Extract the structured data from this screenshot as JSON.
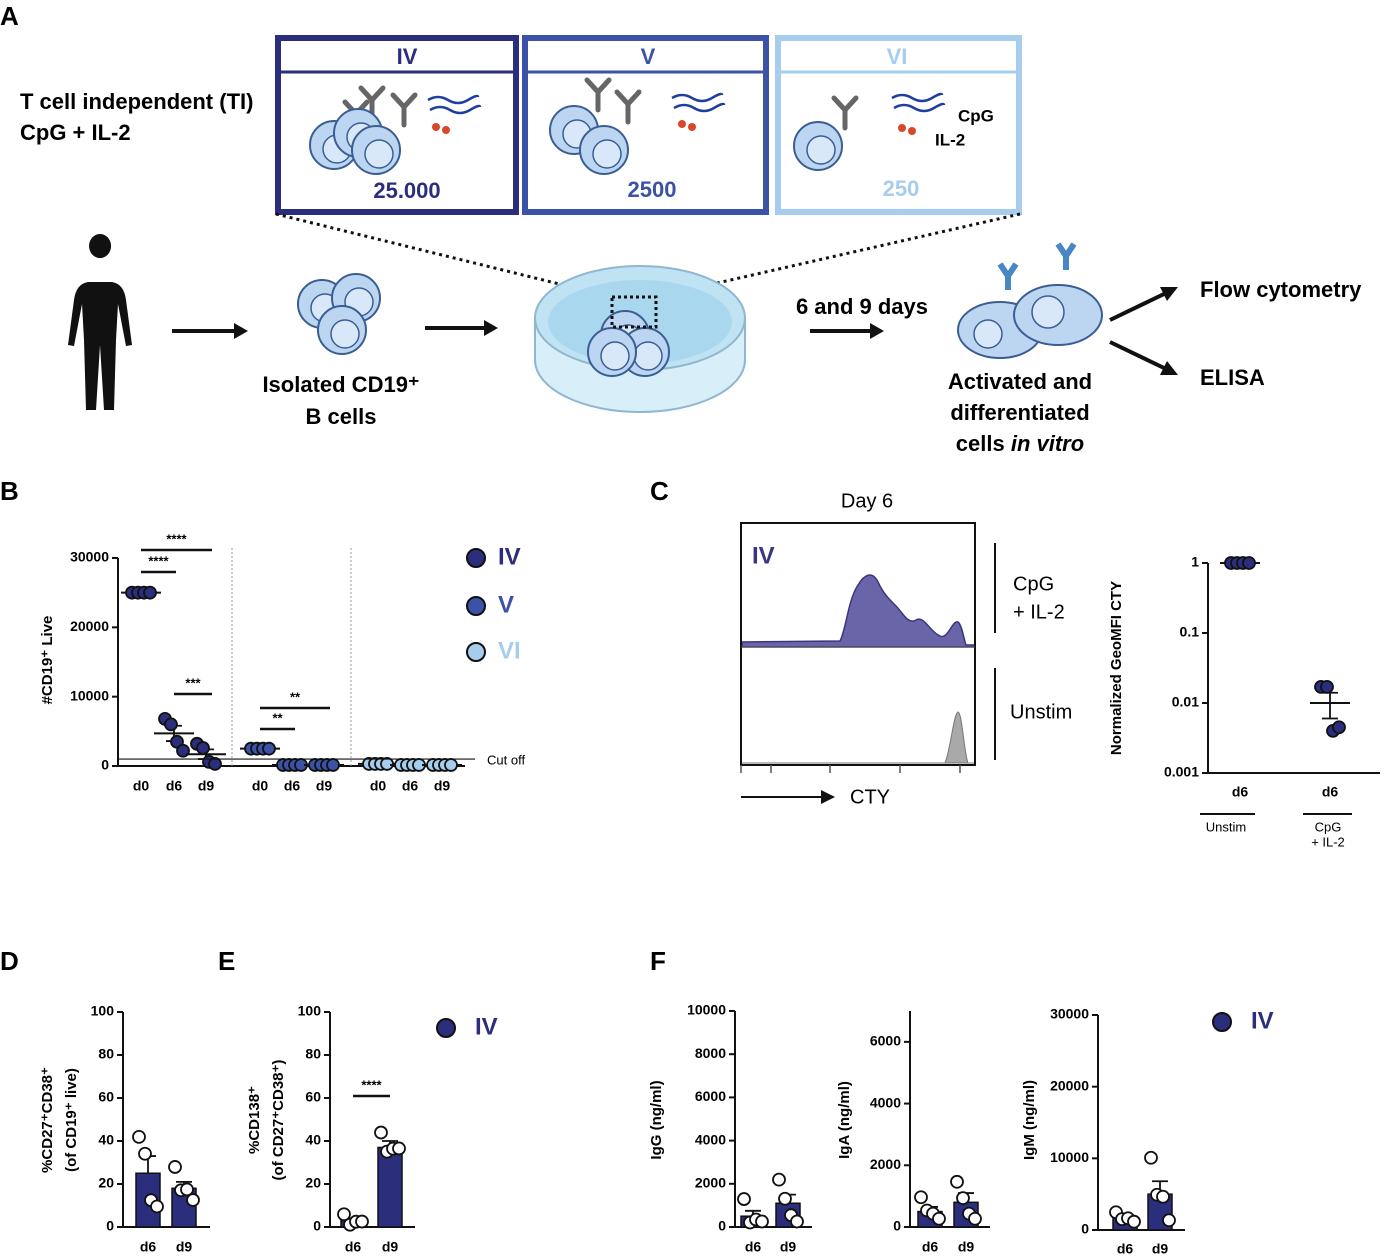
{
  "panel_labels": [
    "A",
    "B",
    "C",
    "D",
    "E",
    "F"
  ],
  "diagram": {
    "conditions": [
      {
        "title": "IV",
        "count": "25.000"
      },
      {
        "title": "V",
        "count": "2500"
      },
      {
        "title": "VI",
        "count": "250"
      }
    ],
    "stimulus": [
      "T cell independent (TI)",
      "CpG + IL-2"
    ],
    "reagents": [
      "CpG",
      "IL-2"
    ],
    "isolated": [
      "Isolated CD19⁺",
      "B cells"
    ],
    "duration": "6 and 9 days",
    "result": [
      "Activated and",
      "differentiated",
      "cells ",
      "in vitro"
    ],
    "readouts": [
      "Flow cytometry",
      "ELISA"
    ]
  },
  "histogram": {
    "title": "Day 6",
    "sample": "IV",
    "conditions": [
      [
        "CpG",
        "+ IL-2"
      ],
      [
        "Unstim"
      ]
    ],
    "xlabel": "CTY"
  },
  "chart_data": [
    {
      "type": "dot",
      "ylabel": [
        "#CD19⁺ Live"
      ],
      "ylim": [
        0,
        30000
      ],
      "yticks": [
        0,
        10000,
        20000,
        30000
      ],
      "cutoff": {
        "value": 1000,
        "label": "Cut off"
      },
      "significance": [
        "****",
        "****",
        "***",
        "**",
        "**"
      ],
      "groups": [
        {
          "name": "IV",
          "color": "#2b2e7c",
          "categories": [
            "d0",
            "d6",
            "d9"
          ],
          "points": [
            [
              25000,
              25000,
              25000,
              25000
            ],
            [
              6800,
              6000,
              3500,
              2200
            ],
            [
              3200,
              2600,
              600,
              300
            ]
          ],
          "mean": [
            25000,
            4700,
            1700
          ],
          "error": [
            0,
            1100,
            700
          ]
        },
        {
          "name": "V",
          "color": "#3c52a6",
          "categories": [
            "d0",
            "d6",
            "d9"
          ],
          "points": [
            [
              2500,
              2500,
              2500,
              2500
            ],
            [
              150,
              150,
              150,
              150
            ],
            [
              150,
              150,
              150,
              150
            ]
          ],
          "mean": [
            2500,
            150,
            150
          ],
          "error": [
            0,
            0,
            0
          ]
        },
        {
          "name": "VI",
          "color": "#a7cdee",
          "categories": [
            "d0",
            "d6",
            "d9"
          ],
          "points": [
            [
              300,
              300,
              300,
              300
            ],
            [
              150,
              150,
              150,
              150
            ],
            [
              150,
              150,
              150,
              150
            ]
          ],
          "mean": [
            300,
            150,
            150
          ],
          "error": [
            0,
            0,
            0
          ]
        }
      ]
    },
    {
      "type": "dot",
      "log": true,
      "color": "#2b2e7c",
      "ylabel": [
        "Normalized GeoMFI CTY"
      ],
      "ylim": [
        0.001,
        1
      ],
      "yticks": [
        0.001,
        0.01,
        0.1,
        1
      ],
      "groups": [
        {
          "label": [
            "Unstim"
          ],
          "categories": [
            "d6"
          ],
          "points": [
            [
              1,
              1,
              1,
              1
            ]
          ],
          "mean": [
            1
          ],
          "error": [
            0
          ]
        },
        {
          "label": [
            "CpG",
            "+ IL-2"
          ],
          "categories": [
            "d6"
          ],
          "points": [
            [
              0.017,
              0.017,
              0.004,
              0.0045
            ]
          ],
          "mean": [
            0.01
          ],
          "error": [
            0.004
          ]
        }
      ]
    },
    {
      "type": "bar",
      "color": "#2b2e7c",
      "ylabel": [
        "%CD27⁺CD38⁺",
        "(of  CD19⁺ live)"
      ],
      "ylim": [
        0,
        100
      ],
      "yticks": [
        0,
        20,
        40,
        60,
        80,
        100
      ],
      "categories": [
        "d6",
        "d9"
      ],
      "values": [
        25,
        18
      ],
      "error": [
        8,
        3
      ],
      "points": [
        [
          41,
          35,
          12,
          10
        ],
        [
          27,
          18,
          17,
          13
        ]
      ]
    },
    {
      "type": "bar",
      "color": "#2b2e7c",
      "ylabel": [
        "%CD138⁺",
        "(of  CD27⁺CD38⁺)"
      ],
      "ylim": [
        0,
        100
      ],
      "yticks": [
        0,
        20,
        40,
        60,
        80,
        100
      ],
      "categories": [
        "d6",
        "d9"
      ],
      "values": [
        3,
        37
      ],
      "error": [
        1,
        3
      ],
      "points": [
        [
          5,
          2,
          2,
          3
        ],
        [
          43,
          36,
          36,
          37
        ]
      ],
      "significance": [
        "****"
      ],
      "legend": [
        "IV"
      ]
    },
    {
      "type": "bar",
      "color": "#2b2e7c",
      "ylabel": [
        "IgG (ng/ml)"
      ],
      "ylim": [
        0,
        10000
      ],
      "yticks": [
        0,
        2000,
        4000,
        6000,
        8000,
        10000
      ],
      "categories": [
        "d6",
        "d9"
      ],
      "values": [
        500,
        1100
      ],
      "error": [
        250,
        400
      ],
      "points": [
        [
          1200,
          300,
          300,
          300
        ],
        [
          2100,
          1400,
          500,
          300
        ]
      ]
    },
    {
      "type": "bar",
      "color": "#2b2e7c",
      "ylabel": [
        "IgA (ng/ml)"
      ],
      "ylim": [
        0,
        7000
      ],
      "yticks": [
        0,
        2000,
        4000,
        6000
      ],
      "categories": [
        "d6",
        "d9"
      ],
      "values": [
        500,
        800
      ],
      "error": [
        150,
        300
      ],
      "points": [
        [
          900,
          600,
          400,
          300
        ],
        [
          1400,
          1000,
          400,
          300
        ]
      ]
    },
    {
      "type": "bar",
      "color": "#2b2e7c",
      "ylabel": [
        "IgM (ng/ml)"
      ],
      "ylim": [
        0,
        30000
      ],
      "yticks": [
        0,
        10000,
        20000,
        30000
      ],
      "categories": [
        "d6",
        "d9"
      ],
      "values": [
        1800,
        5000
      ],
      "error": [
        300,
        1800
      ],
      "points": [
        [
          2200,
          1800,
          1500,
          1300
        ],
        [
          9800,
          5200,
          4500,
          1500
        ]
      ],
      "legend": [
        "IV"
      ]
    }
  ]
}
